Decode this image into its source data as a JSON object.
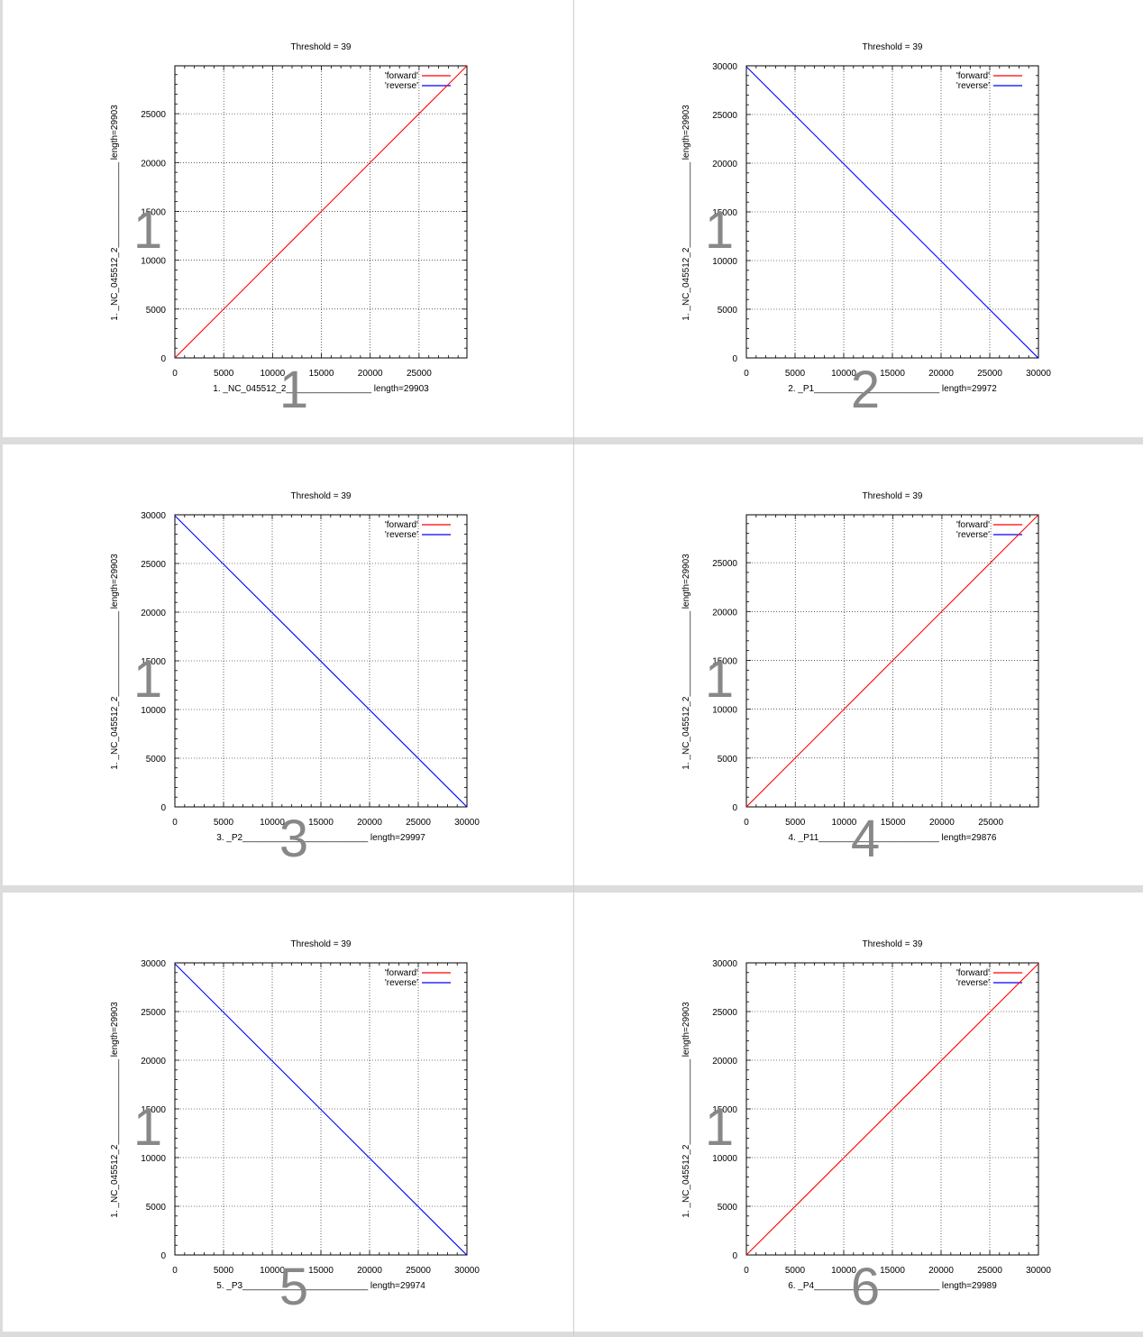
{
  "page": {
    "background": "#dcdcdc",
    "panel_background": "#ffffff",
    "colors": {
      "forward": "#ff0000",
      "reverse": "#0000ff",
      "overlay_number": "#888888",
      "grid": "#000000"
    }
  },
  "panels": [
    {
      "index": 1,
      "overlay_label": "1",
      "title": "Threshold = 39",
      "xlabel": "1. _NC_045512_2_________________ length=29903",
      "ylabel": "1. _NC_045512_2_________________ length=29903",
      "y_overlay": "1",
      "legend": [
        "'forward'",
        "'reverse'"
      ],
      "xticks": [
        "0",
        "5000",
        "10000",
        "15000",
        "20000",
        "25000"
      ],
      "yticks": [
        "0",
        "5000",
        "10000",
        "15000",
        "20000",
        "25000"
      ],
      "xlen": 29903,
      "ylen": 29903,
      "orientation": "forward"
    },
    {
      "index": 2,
      "overlay_label": "2",
      "title": "Threshold = 39",
      "xlabel": "2. _P1_________________________ length=29972",
      "ylabel": "1. _NC_045512_2_________________ length=29903",
      "y_overlay": "1",
      "legend": [
        "'forward'",
        "'reverse'"
      ],
      "xticks": [
        "0",
        "5000",
        "10000",
        "15000",
        "20000",
        "25000",
        "30000"
      ],
      "yticks": [
        "0",
        "5000",
        "10000",
        "15000",
        "20000",
        "25000",
        "30000"
      ],
      "xlen": 30000,
      "ylen": 30000,
      "orientation": "reverse"
    },
    {
      "index": 3,
      "overlay_label": "3",
      "title": "Threshold = 39",
      "xlabel": "3. _P2_________________________ length=29997",
      "ylabel": "1. _NC_045512_2_________________ length=29903",
      "y_overlay": "1",
      "legend": [
        "'forward'",
        "'reverse'"
      ],
      "xticks": [
        "0",
        "5000",
        "10000",
        "15000",
        "20000",
        "25000",
        "30000"
      ],
      "yticks": [
        "0",
        "5000",
        "10000",
        "15000",
        "20000",
        "25000",
        "30000"
      ],
      "xlen": 30000,
      "ylen": 30000,
      "orientation": "reverse"
    },
    {
      "index": 4,
      "overlay_label": "4",
      "title": "Threshold = 39",
      "xlabel": "4. _P11________________________ length=29876",
      "ylabel": "1. _NC_045512_2_________________ length=29903",
      "y_overlay": "1",
      "legend": [
        "'forward'",
        "'reverse'"
      ],
      "xticks": [
        "0",
        "5000",
        "10000",
        "15000",
        "20000",
        "25000"
      ],
      "yticks": [
        "0",
        "5000",
        "10000",
        "15000",
        "20000",
        "25000"
      ],
      "xlen": 29876,
      "ylen": 29903,
      "orientation": "forward"
    },
    {
      "index": 5,
      "overlay_label": "5",
      "title": "Threshold = 39",
      "xlabel": "5. _P3_________________________ length=29974",
      "ylabel": "1. _NC_045512_2_________________ length=29903",
      "y_overlay": "1",
      "legend": [
        "'forward'",
        "'reverse'"
      ],
      "xticks": [
        "0",
        "5000",
        "10000",
        "15000",
        "20000",
        "25000",
        "30000"
      ],
      "yticks": [
        "0",
        "5000",
        "10000",
        "15000",
        "20000",
        "25000",
        "30000"
      ],
      "xlen": 30000,
      "ylen": 30000,
      "orientation": "reverse"
    },
    {
      "index": 6,
      "overlay_label": "6",
      "title": "Threshold = 39",
      "xlabel": "6. _P4_________________________ length=29989",
      "ylabel": "1. _NC_045512_2_________________ length=29903",
      "y_overlay": "1",
      "legend": [
        "'forward'",
        "'reverse'"
      ],
      "xticks": [
        "0",
        "5000",
        "10000",
        "15000",
        "20000",
        "25000",
        "30000"
      ],
      "yticks": [
        "0",
        "5000",
        "10000",
        "15000",
        "20000",
        "25000",
        "30000"
      ],
      "xlen": 30000,
      "ylen": 30000,
      "orientation": "forward"
    }
  ],
  "chart_data": [
    {
      "type": "line",
      "title": "Threshold = 39",
      "xlabel": "1. _NC_045512_2 length=29903",
      "ylabel": "1. _NC_045512_2 length=29903",
      "xlim": [
        0,
        29903
      ],
      "ylim": [
        0,
        29903
      ],
      "grid": true,
      "legend_position": "top-right",
      "series": [
        {
          "name": "'forward'",
          "color": "#ff0000",
          "x": [
            0,
            29903
          ],
          "y": [
            0,
            29903
          ]
        },
        {
          "name": "'reverse'",
          "color": "#0000ff",
          "x": [],
          "y": []
        }
      ]
    },
    {
      "type": "line",
      "title": "Threshold = 39",
      "xlabel": "2. _P1 length=29972",
      "ylabel": "1. _NC_045512_2 length=29903",
      "xlim": [
        0,
        30000
      ],
      "ylim": [
        0,
        30000
      ],
      "grid": true,
      "legend_position": "top-right",
      "series": [
        {
          "name": "'forward'",
          "color": "#ff0000",
          "x": [],
          "y": []
        },
        {
          "name": "'reverse'",
          "color": "#0000ff",
          "x": [
            0,
            29972
          ],
          "y": [
            29903,
            0
          ]
        }
      ]
    },
    {
      "type": "line",
      "title": "Threshold = 39",
      "xlabel": "3. _P2 length=29997",
      "ylabel": "1. _NC_045512_2 length=29903",
      "xlim": [
        0,
        30000
      ],
      "ylim": [
        0,
        30000
      ],
      "grid": true,
      "legend_position": "top-right",
      "series": [
        {
          "name": "'forward'",
          "color": "#ff0000",
          "x": [],
          "y": []
        },
        {
          "name": "'reverse'",
          "color": "#0000ff",
          "x": [
            0,
            29997
          ],
          "y": [
            29903,
            0
          ]
        }
      ]
    },
    {
      "type": "line",
      "title": "Threshold = 39",
      "xlabel": "4. _P11 length=29876",
      "ylabel": "1. _NC_045512_2 length=29903",
      "xlim": [
        0,
        29876
      ],
      "ylim": [
        0,
        29903
      ],
      "grid": true,
      "legend_position": "top-right",
      "series": [
        {
          "name": "'forward'",
          "color": "#ff0000",
          "x": [
            0,
            29876
          ],
          "y": [
            0,
            29903
          ]
        },
        {
          "name": "'reverse'",
          "color": "#0000ff",
          "x": [],
          "y": []
        }
      ]
    },
    {
      "type": "line",
      "title": "Threshold = 39",
      "xlabel": "5. _P3 length=29974",
      "ylabel": "1. _NC_045512_2 length=29903",
      "xlim": [
        0,
        30000
      ],
      "ylim": [
        0,
        30000
      ],
      "grid": true,
      "legend_position": "top-right",
      "series": [
        {
          "name": "'forward'",
          "color": "#ff0000",
          "x": [],
          "y": []
        },
        {
          "name": "'reverse'",
          "color": "#0000ff",
          "x": [
            0,
            29974
          ],
          "y": [
            29903,
            0
          ]
        }
      ]
    },
    {
      "type": "line",
      "title": "Threshold = 39",
      "xlabel": "6. _P4 length=29989",
      "ylabel": "1. _NC_045512_2 length=29903",
      "xlim": [
        0,
        30000
      ],
      "ylim": [
        0,
        30000
      ],
      "grid": true,
      "legend_position": "top-right",
      "series": [
        {
          "name": "'forward'",
          "color": "#ff0000",
          "x": [
            0,
            29989
          ],
          "y": [
            0,
            29903
          ]
        },
        {
          "name": "'reverse'",
          "color": "#0000ff",
          "x": [],
          "y": []
        }
      ]
    }
  ]
}
